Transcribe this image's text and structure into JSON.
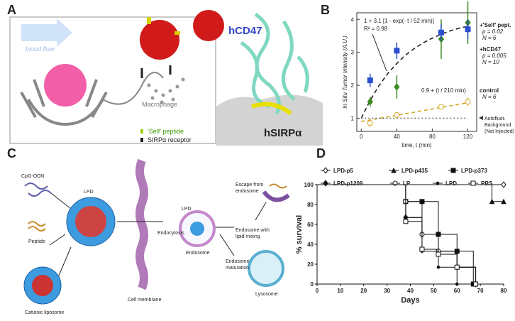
{
  "figure": {
    "panel_labels": [
      "A",
      "B",
      "C",
      "D"
    ],
    "a": {
      "blood_flow": "blood flow",
      "macrophage": "Macrophage",
      "hcd47": "hCD47",
      "hsirpa": "hSIRPα",
      "legend": [
        "'Self' peptide",
        "SIRPα receptor"
      ]
    },
    "c": {
      "cpg": "CpG-ODN",
      "peptide": "Peptide",
      "liposome": "Cationic liposome",
      "lpd": "LPD",
      "endocytosis": "Endocytosis",
      "membrane": "Cell membrane",
      "lpd2": "LPD",
      "endosome": "Endosome",
      "escape": [
        "Escape from",
        "endosome"
      ],
      "mixing": [
        "Endosome with",
        "lipid mixing"
      ],
      "maturation": [
        "Endosome",
        "maturation"
      ],
      "lysosome": "Lysosome"
    }
  },
  "chart_data": [
    {
      "type": "scatter",
      "xlabel": "time, t (min)",
      "ylabel": "In Situ Tumor Intensity (A.U.)",
      "xlim": [
        -5,
        130
      ],
      "ylim": [
        0.6,
        4.2
      ],
      "xticks": [
        0,
        40,
        80,
        120
      ],
      "yticks": [
        1,
        2,
        3,
        4
      ],
      "series": [
        {
          "name": "+'Self' pept.",
          "color": "#3d8b1f",
          "marker": "diamond",
          "stats": [
            "p = 0.02",
            "N = 6"
          ],
          "x": [
            10,
            40,
            90,
            120
          ],
          "values": [
            1.5,
            1.95,
            3.4,
            3.9
          ],
          "errors": [
            0.15,
            0.35,
            0.6,
            0.65
          ]
        },
        {
          "name": "+hCD47",
          "color": "#2b4fcf",
          "marker": "square",
          "stats": [
            "p = 0.005",
            "N = 10"
          ],
          "x": [
            10,
            40,
            90,
            120
          ],
          "values": [
            2.15,
            3.05,
            3.6,
            3.7
          ],
          "errors": [
            0.2,
            0.25,
            0.25,
            0.3
          ]
        },
        {
          "name": "control",
          "color": "#d4a520",
          "marker": "circle",
          "stats": [
            "N = 6"
          ],
          "x": [
            10,
            40,
            90,
            120
          ],
          "values": [
            0.85,
            1.1,
            1.35,
            1.5
          ],
          "errors": [
            0.1,
            0.05,
            0.08,
            0.12
          ]
        }
      ],
      "curves": [
        {
          "color": "#222222",
          "dash": "6 4",
          "x": [
            0,
            10,
            20,
            30,
            40,
            50,
            60,
            70,
            80,
            90,
            100,
            110,
            120
          ],
          "values": [
            1,
            1.54,
            1.99,
            2.36,
            2.66,
            2.92,
            3.12,
            3.29,
            3.43,
            3.55,
            3.65,
            3.73,
            3.79
          ]
        },
        {
          "color": "#d4a520",
          "dash": "5 4",
          "x": [
            0,
            120
          ],
          "values": [
            0.9,
            1.47
          ]
        },
        {
          "color": "#777777",
          "dash": "2 3",
          "x": [
            0,
            120
          ],
          "values": [
            1,
            1
          ]
        }
      ],
      "annotations": {
        "fit": "1 + 3.1 [1 - exp(- t / 52 min)]",
        "r2": "R² = 0.98",
        "control_fit": "0.9 + (t / 210 min)",
        "autofluor": [
          "Autofluor.",
          "Background",
          "(Not Injected)"
        ]
      }
    },
    {
      "type": "line",
      "step": true,
      "xlabel": "Days",
      "ylabel": "% survival",
      "xlim": [
        0,
        80
      ],
      "ylim": [
        0,
        100
      ],
      "xticks": [
        0,
        10,
        20,
        30,
        40,
        50,
        60,
        70,
        80
      ],
      "yticks": [
        0,
        20,
        40,
        60,
        80,
        100
      ],
      "series": [
        {
          "name": "LPD-p5",
          "color": "#111111",
          "marker": "diamond",
          "filled": false,
          "x": [
            0,
            80
          ],
          "values": [
            100,
            100
          ]
        },
        {
          "name": "LPD-p435",
          "color": "#111111",
          "marker": "triangle",
          "filled": true,
          "x": [
            0,
            75,
            80
          ],
          "values": [
            100,
            83,
            83
          ]
        },
        {
          "name": "LPD-p373",
          "color": "#111111",
          "marker": "square",
          "filled": true,
          "x": [
            0,
            38,
            45,
            52,
            60,
            67
          ],
          "values": [
            100,
            83,
            83,
            50,
            33,
            0
          ]
        },
        {
          "name": "LPD-p1209",
          "color": "#111111",
          "marker": "diamond",
          "filled": true,
          "x": [
            0,
            38,
            45,
            52,
            60,
            68
          ],
          "values": [
            100,
            67,
            50,
            33,
            17,
            0
          ]
        },
        {
          "name": "LP",
          "color": "#111111",
          "marker": "circle",
          "filled": false,
          "x": [
            0,
            38,
            45,
            52,
            60,
            68
          ],
          "values": [
            100,
            83,
            50,
            33,
            17,
            0
          ]
        },
        {
          "name": "LPD",
          "color": "#111111",
          "marker": "dot",
          "filled": true,
          "x": [
            0,
            38,
            45,
            52,
            60
          ],
          "values": [
            100,
            67,
            33,
            17,
            0
          ]
        },
        {
          "name": "PBS",
          "color": "#111111",
          "marker": "square",
          "filled": false,
          "x": [
            0,
            38,
            45,
            52,
            60,
            68
          ],
          "values": [
            100,
            63,
            35,
            30,
            17,
            0
          ]
        }
      ]
    }
  ]
}
